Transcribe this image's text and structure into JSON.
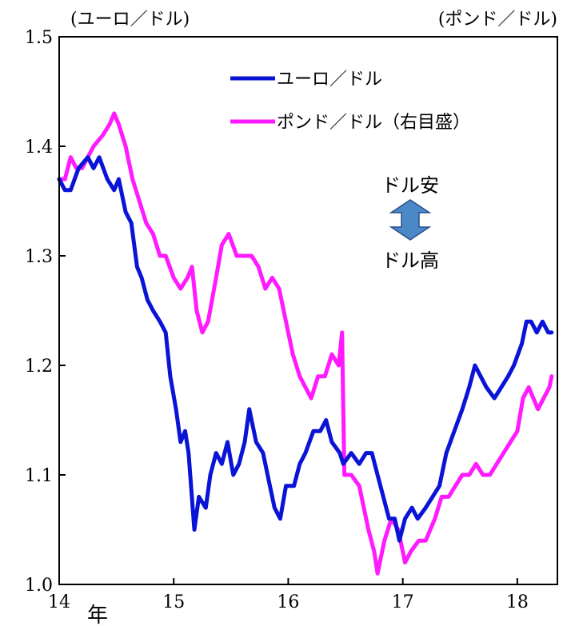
{
  "chart_data": {
    "type": "line",
    "left_axis_label": "(ユーロ／ドル)",
    "right_axis_label": "(ポンド／ドル)",
    "x_unit_label": "年",
    "xlim": [
      2014,
      2018.35
    ],
    "ylim": [
      1.0,
      1.5
    ],
    "right_ylim": [
      1.0,
      1.5
    ],
    "yticks": [
      "1.0",
      "1.1",
      "1.2",
      "1.3",
      "1.4",
      "1.5"
    ],
    "xticks": [
      {
        "label": "14",
        "x": 2014
      },
      {
        "label": "15",
        "x": 2015
      },
      {
        "label": "16",
        "x": 2016
      },
      {
        "label": "17",
        "x": 2017
      },
      {
        "label": "18",
        "x": 2018
      }
    ],
    "grid": false,
    "legend_position": "top-right",
    "annotation": {
      "up_label": "ドル安",
      "down_label": "ドル高",
      "arrow_color": "#4a88c8"
    },
    "series": [
      {
        "name": "ユーロ／ドル",
        "axis": "left",
        "color": "#0a14d6",
        "points": [
          [
            2014.0,
            1.37
          ],
          [
            2014.05,
            1.36
          ],
          [
            2014.1,
            1.36
          ],
          [
            2014.17,
            1.38
          ],
          [
            2014.25,
            1.39
          ],
          [
            2014.3,
            1.38
          ],
          [
            2014.35,
            1.39
          ],
          [
            2014.42,
            1.37
          ],
          [
            2014.48,
            1.36
          ],
          [
            2014.52,
            1.37
          ],
          [
            2014.58,
            1.34
          ],
          [
            2014.63,
            1.33
          ],
          [
            2014.68,
            1.29
          ],
          [
            2014.72,
            1.28
          ],
          [
            2014.77,
            1.26
          ],
          [
            2014.82,
            1.25
          ],
          [
            2014.88,
            1.24
          ],
          [
            2014.93,
            1.23
          ],
          [
            2014.97,
            1.19
          ],
          [
            2015.02,
            1.16
          ],
          [
            2015.06,
            1.13
          ],
          [
            2015.1,
            1.14
          ],
          [
            2015.13,
            1.12
          ],
          [
            2015.18,
            1.05
          ],
          [
            2015.22,
            1.08
          ],
          [
            2015.28,
            1.07
          ],
          [
            2015.32,
            1.1
          ],
          [
            2015.37,
            1.12
          ],
          [
            2015.42,
            1.11
          ],
          [
            2015.47,
            1.13
          ],
          [
            2015.52,
            1.1
          ],
          [
            2015.57,
            1.11
          ],
          [
            2015.62,
            1.13
          ],
          [
            2015.66,
            1.16
          ],
          [
            2015.72,
            1.13
          ],
          [
            2015.78,
            1.12
          ],
          [
            2015.84,
            1.09
          ],
          [
            2015.88,
            1.07
          ],
          [
            2015.93,
            1.06
          ],
          [
            2015.98,
            1.09
          ],
          [
            2016.05,
            1.09
          ],
          [
            2016.1,
            1.11
          ],
          [
            2016.15,
            1.12
          ],
          [
            2016.22,
            1.14
          ],
          [
            2016.28,
            1.14
          ],
          [
            2016.33,
            1.15
          ],
          [
            2016.38,
            1.13
          ],
          [
            2016.45,
            1.12
          ],
          [
            2016.48,
            1.11
          ],
          [
            2016.55,
            1.12
          ],
          [
            2016.62,
            1.11
          ],
          [
            2016.68,
            1.12
          ],
          [
            2016.73,
            1.12
          ],
          [
            2016.78,
            1.1
          ],
          [
            2016.83,
            1.08
          ],
          [
            2016.88,
            1.06
          ],
          [
            2016.93,
            1.06
          ],
          [
            2016.97,
            1.04
          ],
          [
            2017.02,
            1.06
          ],
          [
            2017.08,
            1.07
          ],
          [
            2017.13,
            1.06
          ],
          [
            2017.2,
            1.07
          ],
          [
            2017.26,
            1.08
          ],
          [
            2017.32,
            1.09
          ],
          [
            2017.38,
            1.12
          ],
          [
            2017.45,
            1.14
          ],
          [
            2017.52,
            1.16
          ],
          [
            2017.58,
            1.18
          ],
          [
            2017.63,
            1.2
          ],
          [
            2017.68,
            1.19
          ],
          [
            2017.73,
            1.18
          ],
          [
            2017.8,
            1.17
          ],
          [
            2017.86,
            1.18
          ],
          [
            2017.92,
            1.19
          ],
          [
            2017.97,
            1.2
          ],
          [
            2018.04,
            1.22
          ],
          [
            2018.08,
            1.24
          ],
          [
            2018.12,
            1.24
          ],
          [
            2018.17,
            1.23
          ],
          [
            2018.22,
            1.24
          ],
          [
            2018.27,
            1.23
          ],
          [
            2018.3,
            1.23
          ]
        ]
      },
      {
        "name": "ポンド／ドル（右目盛）",
        "axis": "right",
        "color": "#ff1aff",
        "points": [
          [
            2014.0,
            1.37
          ],
          [
            2014.05,
            1.37
          ],
          [
            2014.1,
            1.39
          ],
          [
            2014.15,
            1.38
          ],
          [
            2014.2,
            1.38
          ],
          [
            2014.25,
            1.39
          ],
          [
            2014.3,
            1.4
          ],
          [
            2014.38,
            1.41
          ],
          [
            2014.44,
            1.42
          ],
          [
            2014.48,
            1.43
          ],
          [
            2014.52,
            1.42
          ],
          [
            2014.58,
            1.4
          ],
          [
            2014.64,
            1.37
          ],
          [
            2014.7,
            1.35
          ],
          [
            2014.76,
            1.33
          ],
          [
            2014.82,
            1.32
          ],
          [
            2014.88,
            1.3
          ],
          [
            2014.93,
            1.3
          ],
          [
            2015.0,
            1.28
          ],
          [
            2015.06,
            1.27
          ],
          [
            2015.12,
            1.28
          ],
          [
            2015.16,
            1.29
          ],
          [
            2015.2,
            1.25
          ],
          [
            2015.25,
            1.23
          ],
          [
            2015.3,
            1.24
          ],
          [
            2015.37,
            1.28
          ],
          [
            2015.42,
            1.31
          ],
          [
            2015.48,
            1.32
          ],
          [
            2015.55,
            1.3
          ],
          [
            2015.62,
            1.3
          ],
          [
            2015.68,
            1.3
          ],
          [
            2015.74,
            1.29
          ],
          [
            2015.8,
            1.27
          ],
          [
            2015.86,
            1.28
          ],
          [
            2015.92,
            1.27
          ],
          [
            2015.98,
            1.24
          ],
          [
            2016.04,
            1.21
          ],
          [
            2016.1,
            1.19
          ],
          [
            2016.15,
            1.18
          ],
          [
            2016.2,
            1.17
          ],
          [
            2016.26,
            1.19
          ],
          [
            2016.32,
            1.19
          ],
          [
            2016.38,
            1.21
          ],
          [
            2016.44,
            1.2
          ],
          [
            2016.47,
            1.23
          ],
          [
            2016.49,
            1.1
          ],
          [
            2016.55,
            1.1
          ],
          [
            2016.62,
            1.09
          ],
          [
            2016.7,
            1.05
          ],
          [
            2016.75,
            1.03
          ],
          [
            2016.78,
            1.01
          ],
          [
            2016.84,
            1.04
          ],
          [
            2016.9,
            1.06
          ],
          [
            2016.96,
            1.05
          ],
          [
            2017.02,
            1.02
          ],
          [
            2017.07,
            1.03
          ],
          [
            2017.14,
            1.04
          ],
          [
            2017.2,
            1.04
          ],
          [
            2017.28,
            1.06
          ],
          [
            2017.34,
            1.08
          ],
          [
            2017.4,
            1.08
          ],
          [
            2017.46,
            1.09
          ],
          [
            2017.52,
            1.1
          ],
          [
            2017.58,
            1.1
          ],
          [
            2017.64,
            1.11
          ],
          [
            2017.7,
            1.1
          ],
          [
            2017.76,
            1.1
          ],
          [
            2017.82,
            1.11
          ],
          [
            2017.88,
            1.12
          ],
          [
            2017.94,
            1.13
          ],
          [
            2018.0,
            1.14
          ],
          [
            2018.05,
            1.17
          ],
          [
            2018.1,
            1.18
          ],
          [
            2018.14,
            1.17
          ],
          [
            2018.18,
            1.16
          ],
          [
            2018.23,
            1.17
          ],
          [
            2018.28,
            1.18
          ],
          [
            2018.3,
            1.19
          ]
        ]
      }
    ]
  }
}
